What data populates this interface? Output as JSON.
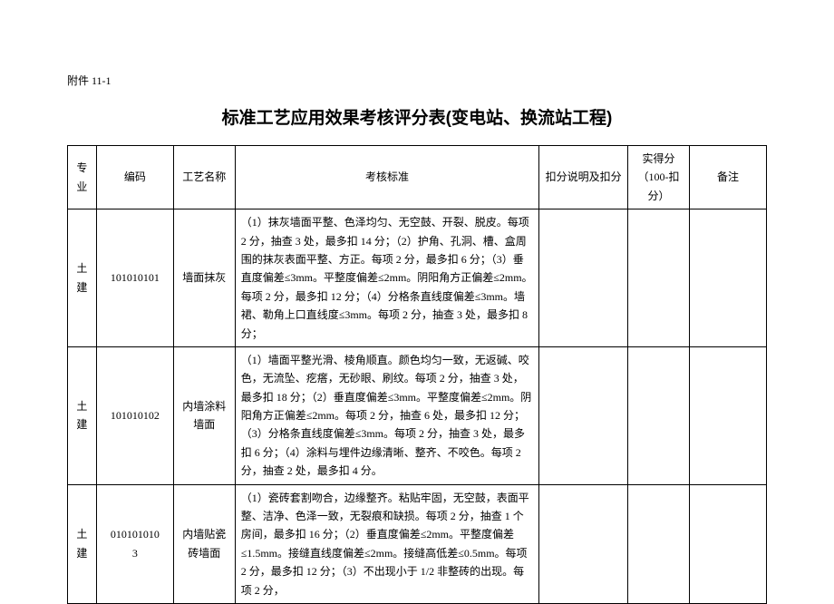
{
  "attachment_label": "附件 11-1",
  "title": "标准工艺应用效果考核评分表(变电站、换流站工程)",
  "columns": {
    "c1": "专业",
    "c2": "编码",
    "c3": "工艺名称",
    "c4": "考核标准",
    "c5": "扣分说明及扣分",
    "c6": "实得分（100-扣分）",
    "c7": "备注"
  },
  "rows": [
    {
      "zy": "土建",
      "code": "101010101",
      "name": "墙面抹灰",
      "std": "（1）抹灰墙面平整、色泽均匀、无空鼓、开裂、脱皮。每项 2 分，抽查 3 处，最多扣 14 分；（2）护角、孔洞、槽、盒周围的抹灰表面平整、方正。每项 2 分，最多扣 6 分；（3）垂直度偏差≤3mm。平整度偏差≤2mm。阴阳角方正偏差≤2mm。每项 2 分，最多扣 12 分；（4）分格条直线度偏差≤3mm。墙裙、勒角上口直线度≤3mm。每项 2 分，抽查 3 处，最多扣 8 分；",
      "deduct": "",
      "score": "",
      "remark": ""
    },
    {
      "zy": "土建",
      "code": "101010102",
      "name": "内墙涂料墙面",
      "std": "（1）墙面平整光滑、棱角顺直。颜色均匀一致，无返碱、咬色，无流坠、疙瘩，无砂眼、刷纹。每项 2 分，抽查 3 处，最多扣 18 分；（2）垂直度偏差≤3mm。平整度偏差≤2mm。阴阳角方正偏差≤2mm。每项 2 分，抽查 6 处，最多扣 12 分；（3）分格条直线度偏差≤3mm。每项 2 分，抽查 3 处，最多扣 6 分；（4）涂料与埋件边缘清晰、整齐、不咬色。每项 2 分，抽查 2 处，最多扣 4 分。",
      "deduct": "",
      "score": "",
      "remark": ""
    },
    {
      "zy": "土建",
      "code": "010101010\n3",
      "name": "内墙贴瓷砖墙面",
      "std": "（1）瓷砖套割吻合，边缘整齐。粘贴牢固，无空鼓，表面平整、洁净、色泽一致，无裂痕和缺损。每项 2 分，抽查 1 个房间，最多扣 16 分；（2）垂直度偏差≤2mm。平整度偏差≤1.5mm。接缝直线度偏差≤2mm。接缝高低差≤0.5mm。每项 2 分，最多扣 12 分；（3）不出现小于 1/2 非整砖的出现。每项 2 分，",
      "deduct": "",
      "score": "",
      "remark": ""
    }
  ]
}
